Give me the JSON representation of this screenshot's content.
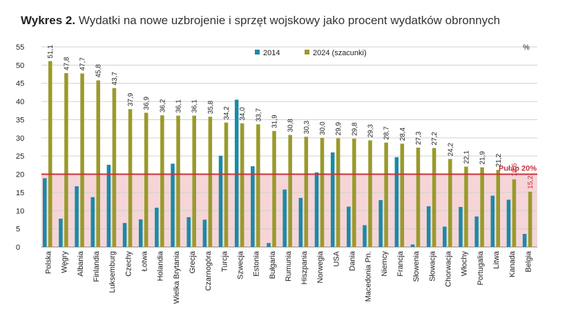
{
  "title_prefix": "Wykres 2.",
  "title_text": "Wydatki na nowe uzbrojenie i sprzęt wojskowy jako procent wydatków obronnych",
  "chart_data": {
    "type": "bar",
    "unit": "%",
    "ylim": [
      0,
      55
    ],
    "yticks": [
      0,
      5,
      10,
      15,
      20,
      25,
      30,
      35,
      40,
      45,
      50,
      55
    ],
    "grid": true,
    "legend_position": "top",
    "categories": [
      "Polska",
      "Węgry",
      "Albania",
      "Finlandia",
      "Luksemburg",
      "Czechy",
      "Łotwa",
      "Holandia",
      "Wielka Brytania",
      "Grecja",
      "Czarnogóra",
      "Turcja",
      "Szwecja",
      "Estonia",
      "Bułgaria",
      "Rumunia",
      "Hiszpania",
      "Norwegia",
      "USA",
      "Dania",
      "Macedonia Pn.",
      "Niemcy",
      "Francja",
      "Słowenia",
      "Słowacja",
      "Chorwacja",
      "Włochy",
      "Portugalia",
      "Litwa",
      "Kanada",
      "Belgia"
    ],
    "series": [
      {
        "name": "2014",
        "color": "#1a8aa8",
        "values": [
          18.9,
          7.8,
          16.7,
          13.7,
          22.6,
          6.6,
          7.6,
          10.8,
          22.9,
          8.2,
          7.5,
          25.1,
          40.5,
          22.2,
          1.1,
          15.8,
          13.5,
          20.5,
          26.0,
          11.1,
          6.0,
          12.9,
          24.7,
          0.7,
          11.2,
          5.6,
          11.0,
          8.4,
          14.1,
          13.0,
          3.6
        ]
      },
      {
        "name": "2024 (szacunki)",
        "color": "#9a9a2c",
        "values": [
          51.1,
          47.8,
          47.7,
          45.8,
          43.7,
          37.9,
          36.9,
          36.2,
          36.1,
          36.1,
          35.8,
          34.2,
          34.0,
          33.7,
          31.9,
          30.8,
          30.3,
          30.0,
          29.9,
          29.8,
          29.3,
          28.7,
          28.4,
          27.3,
          27.2,
          24.2,
          22.1,
          21.9,
          21.2,
          18.6,
          15.2
        ]
      }
    ],
    "value_labels": [
      "51,1",
      "47,8",
      "47,7",
      "45,8",
      "43,7",
      "37,9",
      "36,9",
      "36,2",
      "36,1",
      "36,1",
      "35,8",
      "34,2",
      "34,0",
      "33,7",
      "31,9",
      "30,8",
      "30,3",
      "30,0",
      "29,9",
      "29,8",
      "29,3",
      "28,7",
      "28,4",
      "27,3",
      "27,2",
      "24,2",
      "22,1",
      "21,9",
      "21,2",
      "18,6",
      "15,2"
    ],
    "threshold": {
      "value": 20,
      "label": "Pułap 20%",
      "color": "#c8303a",
      "fill": "#f5d5d8"
    }
  }
}
